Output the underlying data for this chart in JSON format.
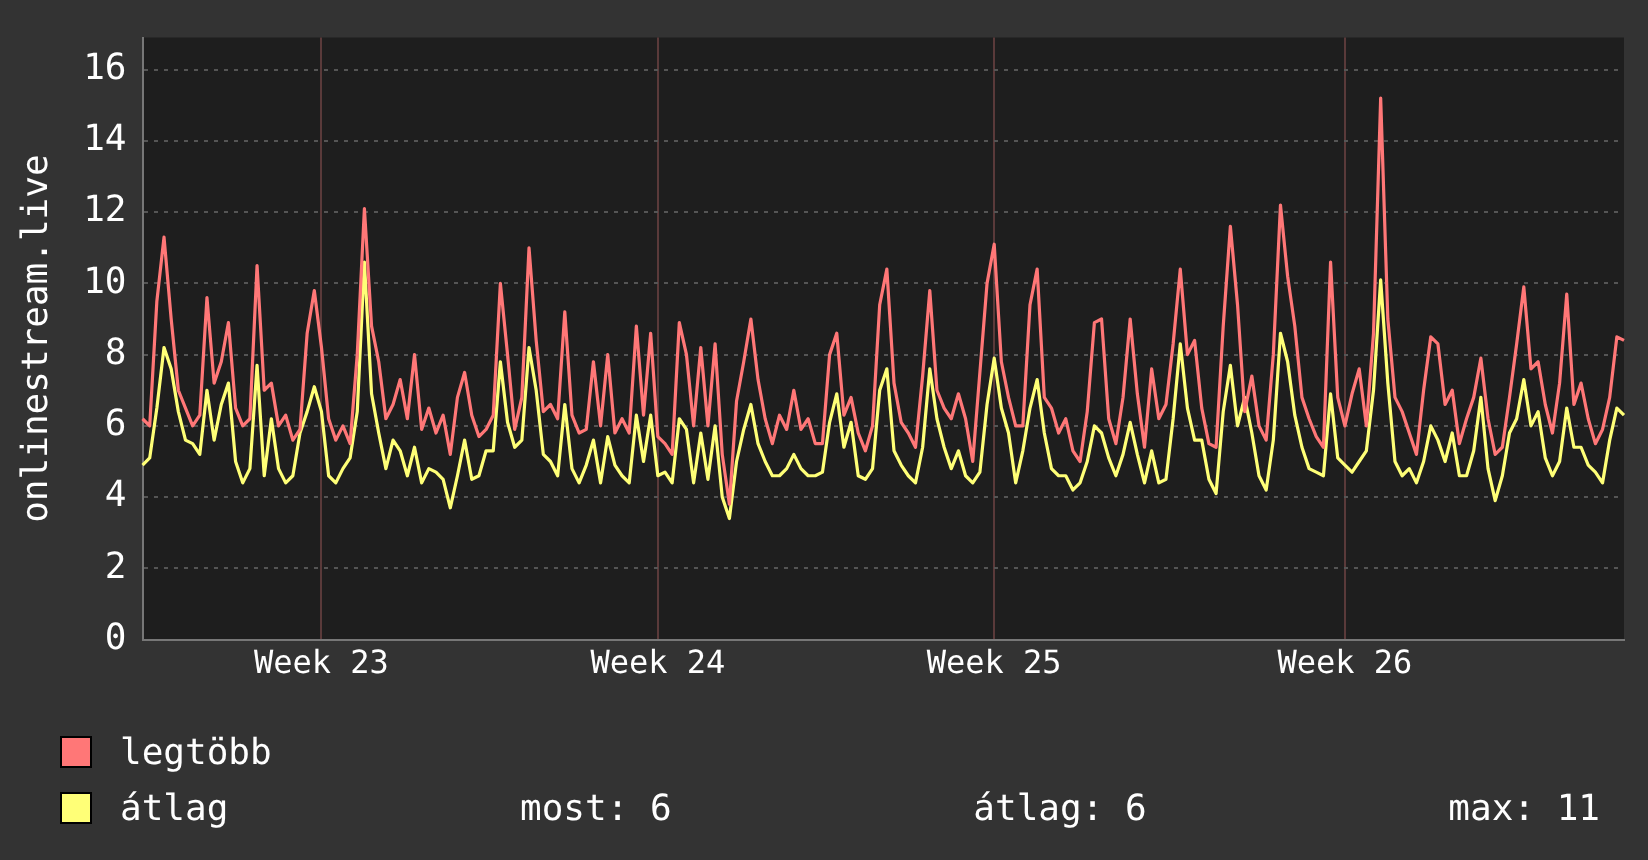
{
  "chart_data": {
    "type": "line",
    "ylabel": "onlinestream.live",
    "categories": [
      null,
      null,
      null,
      null,
      null,
      null,
      null,
      null,
      null,
      null,
      null,
      null,
      null,
      null,
      null,
      null,
      null,
      null,
      null,
      null,
      null,
      null,
      null,
      null,
      null,
      "Week 23",
      null,
      null,
      null,
      null,
      null,
      null,
      null,
      null,
      null,
      null,
      null,
      null,
      null,
      null,
      null,
      null,
      null,
      null,
      null,
      null,
      null,
      null,
      null,
      null,
      null,
      null,
      null,
      null,
      null,
      null,
      null,
      null,
      null,
      null,
      null,
      null,
      null,
      null,
      null,
      null,
      null,
      null,
      null,
      null,
      null,
      null,
      "Week 24",
      null,
      null,
      null,
      null,
      null,
      null,
      null,
      null,
      null,
      null,
      null,
      null,
      null,
      null,
      null,
      null,
      null,
      null,
      null,
      null,
      null,
      null,
      null,
      null,
      null,
      null,
      null,
      null,
      null,
      null,
      null,
      null,
      null,
      null,
      null,
      null,
      null,
      null,
      null,
      null,
      null,
      null,
      null,
      null,
      null,
      null,
      "Week 25",
      null,
      null,
      null,
      null,
      null,
      null,
      null,
      null,
      null,
      null,
      null,
      null,
      null,
      null,
      null,
      null,
      null,
      null,
      null,
      null,
      null,
      null,
      null,
      null,
      null,
      null,
      null,
      null,
      null,
      null,
      null,
      null,
      null,
      null,
      null,
      null,
      null,
      null,
      null,
      null,
      null,
      null,
      null,
      null,
      null,
      null,
      null,
      null,
      "Week 26",
      null,
      null,
      null,
      null,
      null,
      null,
      null,
      null,
      null,
      null,
      null,
      null,
      null,
      null,
      null,
      null,
      null,
      null,
      null,
      null,
      null,
      null,
      null,
      null,
      null,
      null,
      null,
      null,
      null,
      null,
      null,
      null,
      null,
      null,
      null,
      null,
      null,
      null,
      null
    ],
    "series": [
      {
        "name": "legtöbb",
        "color": "#ff7777",
        "values": [
          6.2,
          6.0,
          9.5,
          11.3,
          9.0,
          7.0,
          6.5,
          6.0,
          6.3,
          9.6,
          7.2,
          7.8,
          8.9,
          6.5,
          6.0,
          6.2,
          10.5,
          7.0,
          7.2,
          6.0,
          6.3,
          5.6,
          5.9,
          8.6,
          9.8,
          8.2,
          6.2,
          5.6,
          6.0,
          5.5,
          8.0,
          12.1,
          8.8,
          7.8,
          6.2,
          6.6,
          7.3,
          6.2,
          8.0,
          5.9,
          6.5,
          5.8,
          6.3,
          5.2,
          6.8,
          7.5,
          6.3,
          5.7,
          5.9,
          6.3,
          10.0,
          8.0,
          5.9,
          6.8,
          11.0,
          8.4,
          6.4,
          6.6,
          6.2,
          9.2,
          6.3,
          5.8,
          5.9,
          7.8,
          6.0,
          8.0,
          5.8,
          6.2,
          5.8,
          8.8,
          6.3,
          8.6,
          5.7,
          5.5,
          5.2,
          8.9,
          8.0,
          6.0,
          8.2,
          6.0,
          8.3,
          5.2,
          3.8,
          6.7,
          7.8,
          9.0,
          7.3,
          6.2,
          5.5,
          6.3,
          5.9,
          7.0,
          5.9,
          6.2,
          5.5,
          5.5,
          8.0,
          8.6,
          6.3,
          6.8,
          5.8,
          5.3,
          6.0,
          9.4,
          10.4,
          7.2,
          6.1,
          5.8,
          5.4,
          7.4,
          9.8,
          7.0,
          6.5,
          6.2,
          6.9,
          6.2,
          5.0,
          7.5,
          10.0,
          11.1,
          7.8,
          6.8,
          6.0,
          6.0,
          9.4,
          10.4,
          6.8,
          6.5,
          5.8,
          6.2,
          5.3,
          5.0,
          6.4,
          8.9,
          9.0,
          6.2,
          5.5,
          6.8,
          9.0,
          6.9,
          5.4,
          7.6,
          6.2,
          6.6,
          8.3,
          10.4,
          8.0,
          8.4,
          6.5,
          5.5,
          5.4,
          8.8,
          11.6,
          9.4,
          6.4,
          7.4,
          6.0,
          5.6,
          8.0,
          12.2,
          10.2,
          8.8,
          6.8,
          6.2,
          5.7,
          5.4,
          10.6,
          6.8,
          6.0,
          6.9,
          7.6,
          6.0,
          8.6,
          15.2,
          9.0,
          6.8,
          6.4,
          5.8,
          5.2,
          7.0,
          8.5,
          8.3,
          6.6,
          7.0,
          5.5,
          6.2,
          6.8,
          7.9,
          6.2,
          5.2,
          5.4,
          6.8,
          8.3,
          9.9,
          7.6,
          7.8,
          6.6,
          5.8,
          7.2,
          9.7,
          6.6,
          7.2,
          6.2,
          5.5,
          5.9,
          6.8,
          8.5,
          8.4
        ]
      },
      {
        "name": "átlag",
        "color": "#ffff77",
        "values": [
          4.9,
          5.1,
          6.5,
          8.2,
          7.6,
          6.4,
          5.6,
          5.5,
          5.2,
          7.0,
          5.6,
          6.6,
          7.2,
          5.0,
          4.4,
          4.8,
          7.7,
          4.6,
          6.2,
          4.8,
          4.4,
          4.6,
          5.8,
          6.4,
          7.1,
          6.4,
          4.6,
          4.4,
          4.8,
          5.1,
          6.4,
          10.6,
          6.9,
          5.8,
          4.8,
          5.6,
          5.3,
          4.6,
          5.4,
          4.4,
          4.8,
          4.7,
          4.5,
          3.7,
          4.6,
          5.6,
          4.5,
          4.6,
          5.3,
          5.3,
          7.8,
          6.1,
          5.4,
          5.6,
          8.2,
          7.0,
          5.2,
          5.0,
          4.6,
          6.6,
          4.8,
          4.4,
          4.9,
          5.6,
          4.4,
          5.7,
          4.9,
          4.6,
          4.4,
          6.3,
          5.0,
          6.3,
          4.6,
          4.7,
          4.4,
          6.2,
          5.9,
          4.4,
          5.8,
          4.5,
          6.0,
          4.0,
          3.4,
          5.0,
          5.9,
          6.6,
          5.5,
          5.0,
          4.6,
          4.6,
          4.8,
          5.2,
          4.8,
          4.6,
          4.6,
          4.7,
          6.1,
          6.9,
          5.4,
          6.1,
          4.6,
          4.5,
          4.8,
          7.0,
          7.6,
          5.3,
          4.9,
          4.6,
          4.4,
          5.4,
          7.6,
          6.2,
          5.4,
          4.8,
          5.3,
          4.6,
          4.4,
          4.7,
          6.6,
          7.9,
          6.5,
          5.8,
          4.4,
          5.3,
          6.5,
          7.3,
          5.8,
          4.8,
          4.6,
          4.6,
          4.2,
          4.4,
          5.0,
          6.0,
          5.8,
          5.1,
          4.6,
          5.2,
          6.1,
          5.2,
          4.4,
          5.3,
          4.4,
          4.5,
          6.2,
          8.3,
          6.5,
          5.6,
          5.6,
          4.5,
          4.1,
          6.4,
          7.7,
          6.0,
          6.8,
          5.8,
          4.6,
          4.2,
          5.6,
          8.6,
          7.8,
          6.3,
          5.4,
          4.8,
          4.7,
          4.6,
          6.9,
          5.1,
          4.9,
          4.7,
          5.0,
          5.3,
          7.0,
          10.1,
          7.2,
          5.0,
          4.6,
          4.8,
          4.4,
          5.0,
          6.0,
          5.6,
          5.0,
          5.8,
          4.6,
          4.6,
          5.3,
          6.8,
          4.8,
          3.9,
          4.6,
          5.8,
          6.2,
          7.3,
          6.0,
          6.4,
          5.1,
          4.6,
          5.0,
          6.5,
          5.4,
          5.4,
          4.9,
          4.7,
          4.4,
          5.6,
          6.5,
          6.3
        ]
      }
    ],
    "ylim": [
      0,
      16.9
    ],
    "yticks": [
      0,
      2,
      4,
      6,
      8,
      10,
      12,
      14,
      16
    ],
    "grid": true,
    "legend": "bottom left",
    "annotations": [
      "most: 6",
      "átlag: 6",
      "max: 11"
    ]
  }
}
